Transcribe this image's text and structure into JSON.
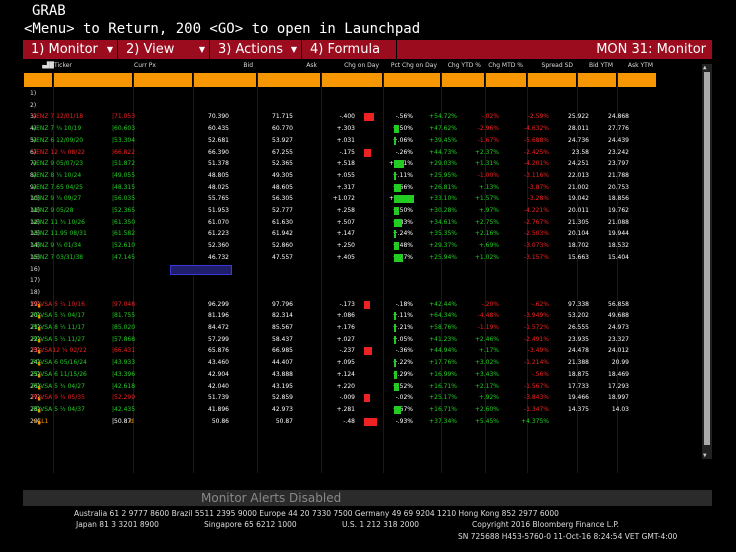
{
  "header": {
    "line1": "GRAB",
    "line2": "<Menu> to Return, 200 <GO> to open in Launchpad"
  },
  "menu": {
    "items": [
      {
        "label": "1) Monitor"
      },
      {
        "label": "2) View"
      },
      {
        "label": "3) Actions"
      },
      {
        "label": "4) Formula"
      }
    ],
    "title": "MON 31: Monitor"
  },
  "columns": [
    "Ticker",
    "Curr Px",
    "Bid",
    "Ask",
    "Chg on Day",
    "Pct Chg on Day",
    "Chg YTD %",
    "Chg MTD %",
    "Spread SD",
    "Bid YTM",
    "Ask YTM"
  ],
  "colors": {
    "up": "#22cc22",
    "down": "#ee2222",
    "neutral": "#ffffff",
    "accent": "#f79600",
    "menu": "#9a0c1e"
  },
  "rows": [
    {
      "n": "1)"
    },
    {
      "n": "2)"
    },
    {
      "n": "3)",
      "ticker": "VENZ 7 12/01/18",
      "px": "|71.053",
      "bid": "70.390",
      "ask": "71.715",
      "chg": "-.400",
      "pct": "-.56%",
      "bar": -0.56,
      "ytd": "+54.72%",
      "mtd": "-.02%",
      "spr": "-2.59%",
      "bytm": "25.922",
      "aytm": "24.868",
      "tc": "down"
    },
    {
      "n": "4)",
      "ticker": "VENZ 7 ¾ 10/19",
      "px": "|60.603",
      "bid": "60.435",
      "ask": "60.770",
      "chg": "+.303",
      "pct": "+.50%",
      "bar": 0.5,
      "ytd": "+47.62%",
      "mtd": "-2.96%",
      "spr": "-4.632%",
      "bytm": "28.011",
      "aytm": "27.776",
      "tc": "up"
    },
    {
      "n": "5)",
      "ticker": "VENZ 6 12/09/20",
      "px": "|53.304",
      "bid": "52.681",
      "ask": "53.927",
      "chg": "+.031",
      "pct": "+.06%",
      "bar": 0.06,
      "ytd": "+39.45%",
      "mtd": "-1.67%",
      "spr": "-5.688%",
      "bytm": "24.736",
      "aytm": "24.439",
      "tc": "up"
    },
    {
      "n": "6)",
      "ticker": "VENZ 12 ¾ 08/22",
      "px": "|66.822",
      "bid": "66.390",
      "ask": "67.255",
      "chg": "-.175",
      "pct": "-.26%",
      "bar": -0.26,
      "ytd": "+44.73%",
      "mtd": "+2.37%",
      "spr": "-2.425%",
      "bytm": "23.58",
      "aytm": "23.242",
      "tc": "down"
    },
    {
      "n": "7)",
      "ticker": "VENZ 9 05/07/23",
      "px": "|51.872",
      "bid": "51.378",
      "ask": "52.365",
      "chg": "+.518",
      "pct": "+1.01%",
      "bar": 1.01,
      "ytd": "+29.03%",
      "mtd": "+1.31%",
      "spr": "-4.201%",
      "bytm": "24.251",
      "aytm": "23.797",
      "tc": "up"
    },
    {
      "n": "8)",
      "ticker": "VENZ 8 ¼ 10/24",
      "px": "|49.055",
      "bid": "48.805",
      "ask": "49.305",
      "chg": "+.055",
      "pct": "+.11%",
      "bar": 0.11,
      "ytd": "+25.95%",
      "mtd": "-1.00%",
      "spr": "-3.116%",
      "bytm": "22.013",
      "aytm": "21.788",
      "tc": "up"
    },
    {
      "n": "9)",
      "ticker": "VENZ 7.65 04/25",
      "px": "|48.315",
      "bid": "48.025",
      "ask": "48.605",
      "chg": "+.317",
      "pct": "+.66%",
      "bar": 0.66,
      "ytd": "+26.81%",
      "mtd": "+.13%",
      "spr": "-3.87%",
      "bytm": "21.002",
      "aytm": "20.753",
      "tc": "up"
    },
    {
      "n": "10)",
      "ticker": "VENZ 9 ¼ 09/27",
      "px": "|56.035",
      "bid": "55.765",
      "ask": "56.305",
      "chg": "+1.072",
      "pct": "+1.95%",
      "bar": 1.95,
      "ytd": "+33.10%",
      "mtd": "+1.57%",
      "spr": "-3.28%",
      "bytm": "19.042",
      "aytm": "18.856",
      "tc": "up"
    },
    {
      "n": "11)",
      "ticker": "VENZ 9 05/28",
      "px": "|52.365",
      "bid": "51.953",
      "ask": "52.777",
      "chg": "+.258",
      "pct": "+.50%",
      "bar": 0.5,
      "ytd": "+30.28%",
      "mtd": "+.97%",
      "spr": "-4.221%",
      "bytm": "20.011",
      "aytm": "19.762",
      "tc": "up"
    },
    {
      "n": "12)",
      "ticker": "VENZ 11 ¾ 10/26",
      "px": "|61.350",
      "bid": "61.070",
      "ask": "61.630",
      "chg": "+.507",
      "pct": "+.83%",
      "bar": 0.83,
      "ytd": "+34.61%",
      "mtd": "+2.75%",
      "spr": "-2.767%",
      "bytm": "21.305",
      "aytm": "21.088",
      "tc": "up"
    },
    {
      "n": "13)",
      "ticker": "VENZ 11.95 08/31",
      "px": "|61.582",
      "bid": "61.223",
      "ask": "61.942",
      "chg": "+.147",
      "pct": "+.24%",
      "bar": 0.24,
      "ytd": "+35.35%",
      "mtd": "+2.16%",
      "spr": "-2.503%",
      "bytm": "20.104",
      "aytm": "19.944",
      "tc": "up"
    },
    {
      "n": "14)",
      "ticker": "VENZ 9 ¼ 01/34",
      "px": "|52.610",
      "bid": "52.360",
      "ask": "52.860",
      "chg": "+.250",
      "pct": "+.48%",
      "bar": 0.48,
      "ytd": "+29.37%",
      "mtd": "+.69%",
      "spr": "-3.073%",
      "bytm": "18.702",
      "aytm": "18.532",
      "tc": "up"
    },
    {
      "n": "15)",
      "ticker": "VENZ 7 03/31/38",
      "px": "|47.145",
      "bid": "46.732",
      "ask": "47.557",
      "chg": "+.405",
      "pct": "+.87%",
      "bar": 0.87,
      "ytd": "+25.94%",
      "mtd": "+1.02%",
      "spr": "-3.157%",
      "bytm": "15.663",
      "aytm": "15.404",
      "tc": "up"
    },
    {
      "n": "16)",
      "sel": true
    },
    {
      "n": "17)"
    },
    {
      "n": "18)"
    },
    {
      "n": "19)",
      "ticker": "PDVSA 5 ¼ 10/16",
      "px": "|97.048",
      "bid": "96.299",
      "ask": "97.796",
      "chg": "-.173",
      "pct": "-.18%",
      "bar": -0.18,
      "ytd": "+42.44%",
      "mtd": "-.20%",
      "spr": "-.62%",
      "bytm": "97.338",
      "aytm": "56.858",
      "tc": "down",
      "amp": true
    },
    {
      "n": "20)",
      "ticker": "PDVSA 5 ¼ 04/17",
      "px": "|81.755",
      "bid": "81.196",
      "ask": "82.314",
      "chg": "+.086",
      "pct": "+.11%",
      "bar": 0.11,
      "ytd": "+64.34%",
      "mtd": "-4.48%",
      "spr": "-3.949%",
      "bytm": "53.202",
      "aytm": "49.688",
      "tc": "up",
      "amp": true
    },
    {
      "n": "21)",
      "ticker": "PDVSA 8 ½ 11/17",
      "px": "|85.020",
      "bid": "84.472",
      "ask": "85.567",
      "chg": "+.176",
      "pct": "+.21%",
      "bar": 0.21,
      "ytd": "+58.76%",
      "mtd": "-1.19%",
      "spr": "-1.572%",
      "bytm": "26.555",
      "aytm": "24.973",
      "tc": "up",
      "amp": true
    },
    {
      "n": "22)",
      "ticker": "PDVSA 5 ½ 11/27",
      "px": "|57.868",
      "bid": "57.299",
      "ask": "58.437",
      "chg": "+.027",
      "pct": "+.05%",
      "bar": 0.05,
      "ytd": "+41.23%",
      "mtd": "+2.46%",
      "spr": "-2.491%",
      "bytm": "23.935",
      "aytm": "23.327",
      "tc": "up",
      "amp": true
    },
    {
      "n": "23)",
      "ticker": "PDVSA12 ¾ 02/22",
      "px": "|66.431",
      "bid": "65.876",
      "ask": "66.985",
      "chg": "-.237",
      "pct": "-.36%",
      "bar": -0.36,
      "ytd": "+44.94%",
      "mtd": "+.17%",
      "spr": "-3.49%",
      "bytm": "24.478",
      "aytm": "24.012",
      "tc": "down",
      "amp": true
    },
    {
      "n": "24)",
      "ticker": "PDVSA 6 05/16/24",
      "px": "|43.933",
      "bid": "43.460",
      "ask": "44.407",
      "chg": "+.095",
      "pct": "+.22%",
      "bar": 0.22,
      "ytd": "+17.76%",
      "mtd": "+3.02%",
      "spr": "-1.214%",
      "bytm": "21.388",
      "aytm": "20.99",
      "tc": "up",
      "amp": true
    },
    {
      "n": "25)",
      "ticker": "PDVSA 6 11/15/26",
      "px": "|43.396",
      "bid": "42.904",
      "ask": "43.888",
      "chg": "+.124",
      "pct": "+.29%",
      "bar": 0.29,
      "ytd": "+16.99%",
      "mtd": "+3.43%",
      "spr": "-.56%",
      "bytm": "18.875",
      "aytm": "18.469",
      "tc": "up",
      "amp": true
    },
    {
      "n": "26)",
      "ticker": "PDVSA 5 ¾ 04/27",
      "px": "|42.618",
      "bid": "42.040",
      "ask": "43.195",
      "chg": "+.220",
      "pct": "+.52%",
      "bar": 0.52,
      "ytd": "+16.71%",
      "mtd": "+2.17%",
      "spr": "-1.567%",
      "bytm": "17.733",
      "aytm": "17.293",
      "tc": "up",
      "amp": true
    },
    {
      "n": "27)",
      "ticker": "PDVSA 9 ¾ 05/35",
      "px": "|52.299",
      "bid": "51.739",
      "ask": "52.859",
      "chg": "-.009",
      "pct": "-.02%",
      "bar": -0.02,
      "ytd": "+25.17%",
      "mtd": "+.92%",
      "spr": "-3.843%",
      "bytm": "19.466",
      "aytm": "18.997",
      "tc": "down",
      "amp": true
    },
    {
      "n": "28)",
      "ticker": "PDVSA 5 ½ 04/37",
      "px": "|42.435",
      "bid": "41.896",
      "ask": "42.973",
      "chg": "+.281",
      "pct": "+.67%",
      "bar": 0.67,
      "ytd": "+16.71%",
      "mtd": "+2.60%",
      "spr": "-1.347%",
      "bytm": "14.375",
      "aytm": "14.03",
      "tc": "up",
      "amp": true
    },
    {
      "n": "29)",
      "ticker": "+CL1",
      "px": "|50.87",
      "bid": "50.86",
      "ask": "50.87",
      "chg": "-.48",
      "pct": "-.93%",
      "bar": -0.93,
      "ytd": "+37.34%",
      "mtd": "+5.45%",
      "spr": "+4.375%",
      "bytm": "",
      "aytm": "",
      "tc": "cl",
      "amp": true,
      "dflag": "d"
    }
  ],
  "scrollbar": {
    "up": "▲",
    "down": "▼"
  },
  "alert": "Monitor Alerts Disabled",
  "footer": {
    "line1": "Australia 61 2 9777 8600 Brazil 5511 2395 9000 Europe 44 20 7330 7500 Germany 49 69 9204 1210 Hong Kong 852 2977 6000",
    "line2a": "Japan 81 3 3201 8900",
    "line2b": "Singapore 65 6212 1000",
    "line2c": "U.S. 1 212 318 2000",
    "line2d": "Copyright 2016 Bloomberg Finance L.P.",
    "line3": "SN 725688 H453-5760-0 11-Oct-16  8:24:54 VET  GMT-4:00"
  }
}
